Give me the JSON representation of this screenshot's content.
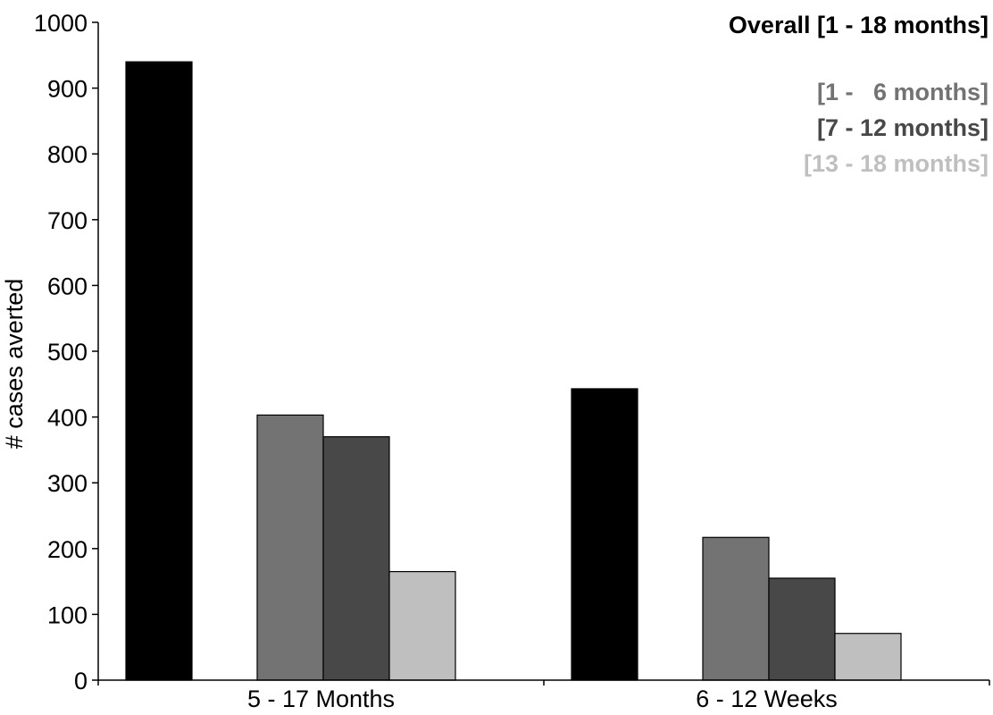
{
  "chart_data": {
    "type": "bar",
    "title": "",
    "xlabel": "",
    "ylabel": "# cases averted",
    "ylim": [
      0,
      1000
    ],
    "yticks": [
      0,
      100,
      200,
      300,
      400,
      500,
      600,
      700,
      800,
      900,
      1000
    ],
    "categories": [
      "5 - 17 Months",
      "6 - 12 Weeks"
    ],
    "grid": false,
    "legend_position": "top-right",
    "series": [
      {
        "name": "Overall [1 - 18 months]",
        "color": "#000000",
        "values": [
          940,
          443
        ]
      },
      {
        "name": "[1 -   6 months]",
        "color": "#737373",
        "values": [
          403,
          217
        ]
      },
      {
        "name": "[7 - 12 months]",
        "color": "#484848",
        "values": [
          370,
          155
        ]
      },
      {
        "name": "[13 - 18 months]",
        "color": "#bfbfbf",
        "values": [
          165,
          71
        ]
      }
    ],
    "legend_order": [
      0,
      1,
      2,
      3
    ]
  }
}
